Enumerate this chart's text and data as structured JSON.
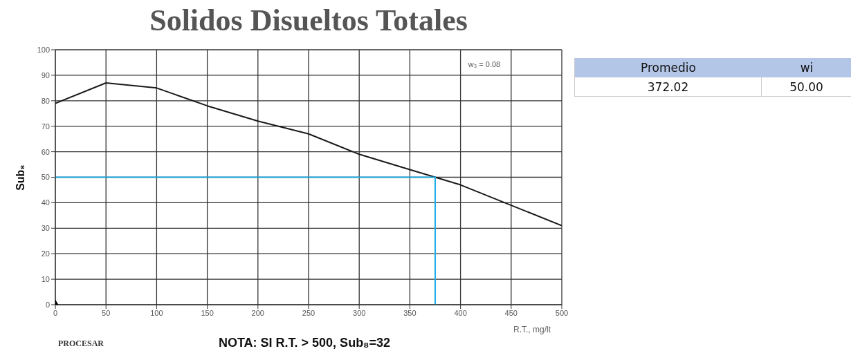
{
  "chart_data": [
    {
      "type": "line",
      "title": "Solidos Disueltos Totales",
      "xlabel": "R.T., mg/lt",
      "ylabel": "Sub₈",
      "xlim": [
        0,
        500
      ],
      "xticks": [
        0,
        50,
        100,
        150,
        200,
        250,
        300,
        350,
        400,
        450,
        500
      ],
      "ylim": [
        0,
        100
      ],
      "yticks": [
        0,
        10,
        20,
        30,
        40,
        50,
        60,
        70,
        80,
        90,
        100
      ],
      "grid": true,
      "line_style": "solid",
      "series": [
        {
          "type": "line",
          "color": "#1a1a1a",
          "x": [
            0,
            50,
            100,
            150,
            200,
            250,
            300,
            350,
            375,
            400,
            450,
            500
          ],
          "values": [
            79,
            87,
            85,
            78,
            72,
            67,
            59,
            53,
            50,
            47,
            39,
            31
          ]
        },
        {
          "type": "line",
          "color": "#1eaee8",
          "x": [
            0,
            375,
            375
          ],
          "values": [
            50,
            50,
            0
          ]
        },
        {
          "type": "scatter",
          "color": "#000000",
          "marker": "diamond",
          "x": [
            0
          ],
          "values": [
            0
          ]
        }
      ],
      "annotations": [
        "w₃ = 0.08",
        "PROCESAR",
        "NOTA: SI R.T. > 500, Sub₈=32"
      ]
    },
    {
      "type": "other",
      "annotations": [
        "Promedio",
        "wi",
        "372.02",
        "50.00"
      ]
    }
  ]
}
